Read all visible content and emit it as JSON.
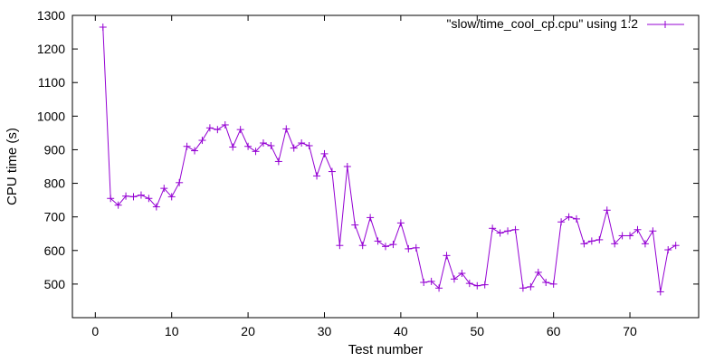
{
  "chart_data": {
    "type": "line",
    "title": "",
    "xlabel": "Test number",
    "ylabel": "CPU time (s)",
    "xlim": [
      -3,
      79
    ],
    "ylim": [
      400,
      1300
    ],
    "xticks": [
      0,
      10,
      20,
      30,
      40,
      50,
      60,
      70
    ],
    "yticks": [
      500,
      600,
      700,
      800,
      900,
      1000,
      1100,
      1200,
      1300
    ],
    "grid": false,
    "legend_position": "top-right",
    "series": [
      {
        "name": "\"slow/time_cool_cp.cpu\" using 1:2",
        "color": "#9400d3",
        "marker": "plus",
        "x": [
          1,
          2,
          3,
          4,
          5,
          6,
          7,
          8,
          9,
          10,
          11,
          12,
          13,
          14,
          15,
          16,
          17,
          18,
          19,
          20,
          21,
          22,
          23,
          24,
          25,
          26,
          27,
          28,
          29,
          30,
          31,
          32,
          33,
          34,
          35,
          36,
          37,
          38,
          39,
          40,
          41,
          42,
          43,
          44,
          45,
          46,
          47,
          48,
          49,
          50,
          51,
          52,
          53,
          54,
          55,
          56,
          57,
          58,
          59,
          60,
          61,
          62,
          63,
          64,
          65,
          66,
          67,
          68,
          69,
          70,
          71,
          72,
          73,
          74,
          75,
          76
        ],
        "y": [
          1265,
          755,
          735,
          762,
          760,
          765,
          755,
          730,
          785,
          760,
          802,
          910,
          897,
          928,
          965,
          960,
          974,
          908,
          960,
          910,
          895,
          920,
          912,
          865,
          962,
          905,
          920,
          912,
          822,
          888,
          835,
          615,
          850,
          676,
          615,
          698,
          628,
          612,
          618,
          682,
          605,
          608,
          505,
          508,
          488,
          585,
          515,
          532,
          502,
          495,
          498,
          666,
          652,
          658,
          662,
          488,
          492,
          535,
          505,
          500,
          685,
          700,
          694,
          620,
          628,
          632,
          720,
          620,
          644,
          644,
          662,
          620,
          658,
          477,
          602,
          615
        ]
      }
    ]
  }
}
